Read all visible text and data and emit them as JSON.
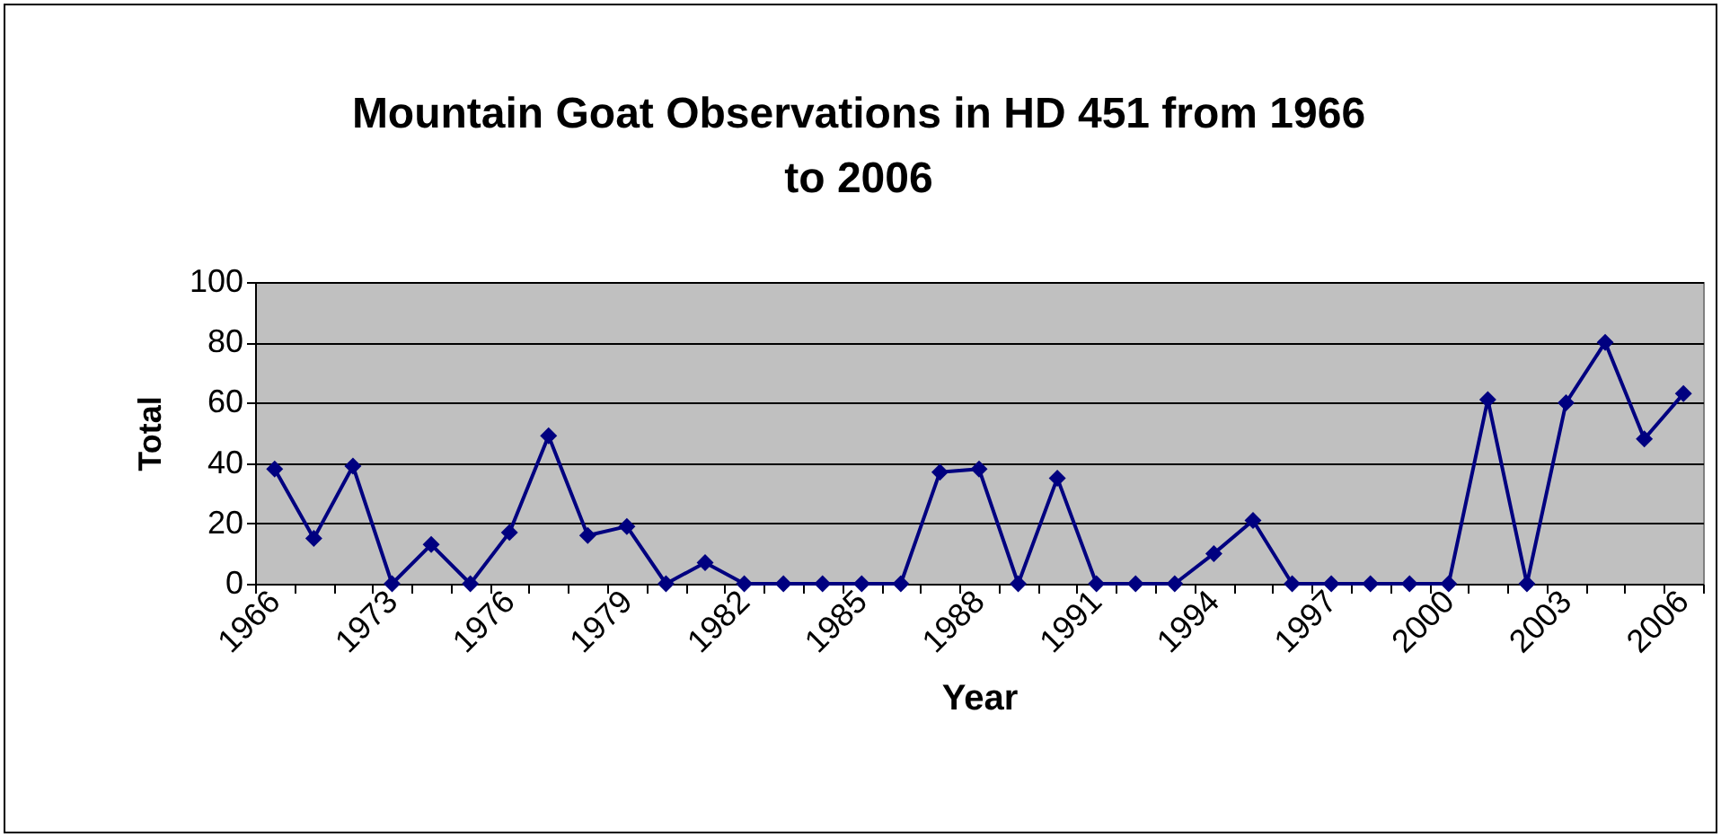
{
  "chart_data": {
    "type": "line",
    "title": "Mountain Goat Observations in HD 451 from 1966 to 2006",
    "xlabel": "Year",
    "ylabel": "Total",
    "categories": [
      "1966",
      null,
      null,
      "1973",
      null,
      null,
      "1976",
      null,
      null,
      "1979",
      null,
      null,
      "1982",
      null,
      null,
      "1985",
      null,
      null,
      "1988",
      null,
      null,
      "1991",
      null,
      null,
      "1994",
      null,
      null,
      "1997",
      null,
      null,
      "2000",
      null,
      null,
      "2003",
      null,
      null,
      "2006"
    ],
    "series": [
      {
        "color": "#000080",
        "values": [
          38,
          15,
          39,
          0,
          13,
          0,
          17,
          49,
          16,
          19,
          0,
          7,
          0,
          0,
          0,
          0,
          0,
          37,
          38,
          0,
          35,
          0,
          0,
          0,
          10,
          21,
          0,
          0,
          0,
          0,
          0,
          61,
          0,
          60,
          80,
          48,
          63
        ]
      }
    ],
    "ylim": [
      0,
      100
    ],
    "yticks": [
      0,
      20,
      40,
      60,
      80,
      100
    ],
    "grid": "y",
    "marker": "diamond",
    "line_style": "solid"
  }
}
